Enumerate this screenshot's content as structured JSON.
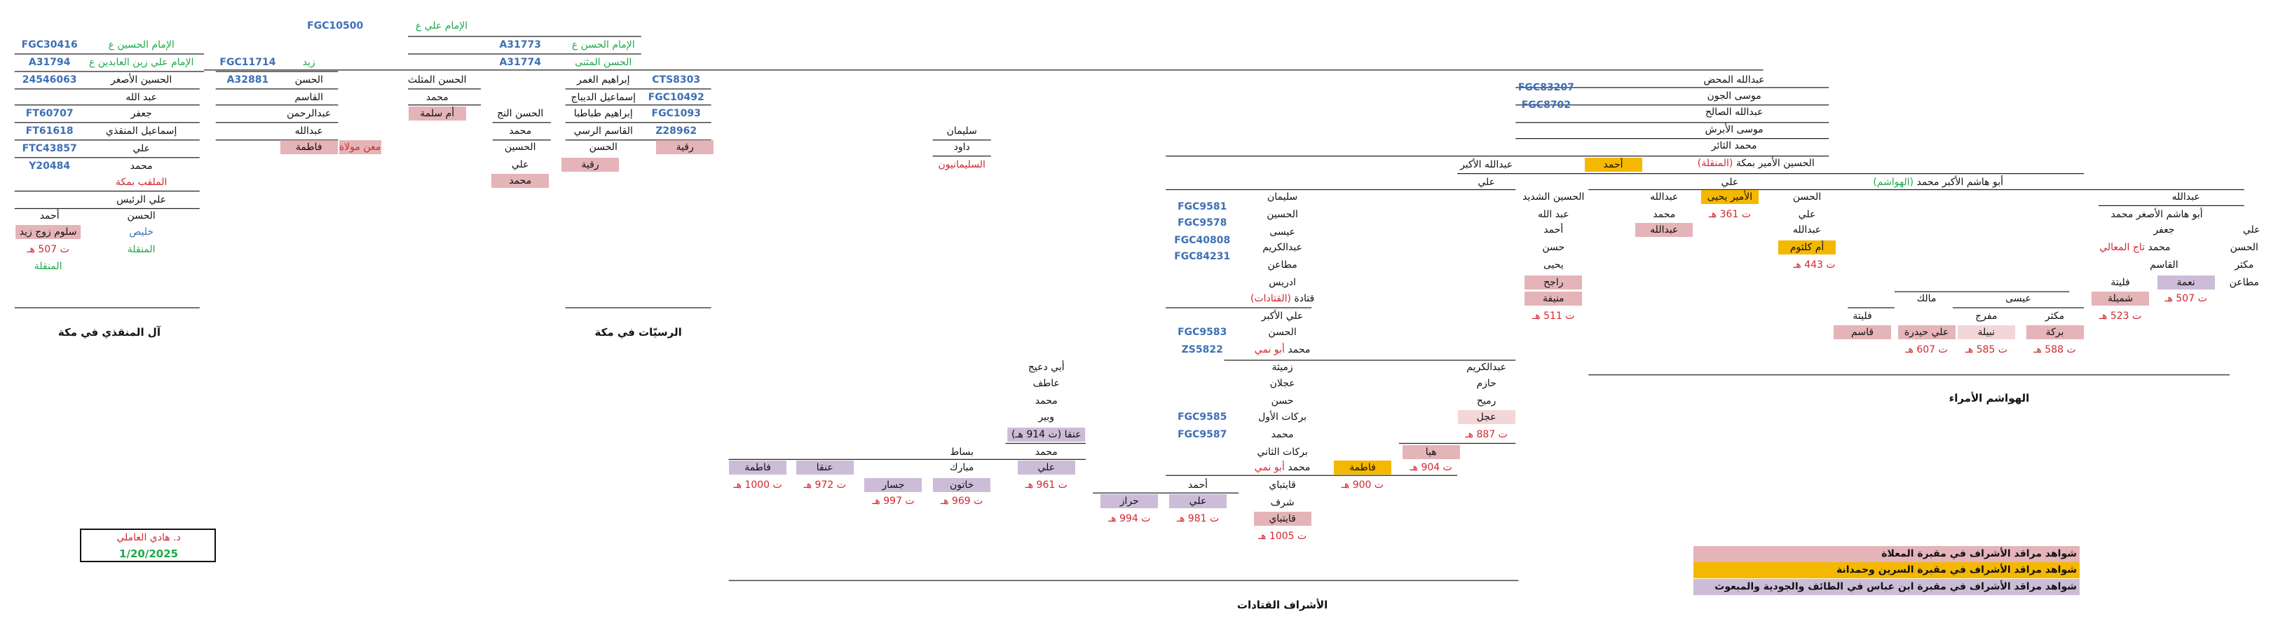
{
  "header": {
    "items": [
      "FGC10500",
      "الإمام علي ع"
    ]
  },
  "munqidhi": {
    "title": "آل المنقذي في مكة",
    "items": [
      "FGC30416",
      "الإمام الحسين ع",
      "A31794",
      "الإمام علي زين العابدين ع",
      "24546063",
      "الحسين الأصغر",
      "عبد الله",
      "FT60707",
      "جعفر",
      "FT61618",
      "إسماعيل المنقذي",
      "FTC43857",
      "علي",
      "Y20484",
      "محمد",
      "الملقب بمكة",
      "علي الرئيس",
      "أحمد",
      "الحسن",
      "سلوم زوج زيد",
      "خليص",
      "ت 507 هـ",
      "المنقلة",
      "المنقلة",
      "FGC11714",
      "زيد",
      "A32881",
      "الحسن",
      "القاسم",
      "عبدالرحمن",
      "عبدالله",
      "فاطمة",
      "معن مولاة",
      "الحسن المثلث",
      "محمد",
      "أم سلمة"
    ]
  },
  "rassiyat": {
    "title": "الرسيّات في مكة",
    "items": [
      "A31773",
      "الإمام الحسن ع",
      "A31774",
      "الحسن المثنى",
      "إبراهيم الغمر",
      "CTS8303",
      "إسماعيل الديباج",
      "FGC10492",
      "إبراهيم طباطبا",
      "FGC1093",
      "القاسم الرسي",
      "Z28962",
      "الحسن",
      "رقية",
      "رقية",
      "الحسن النج",
      "محمد",
      "الحسين",
      "علي",
      "محمد"
    ]
  },
  "sulaymaniyun": {
    "items": [
      "سليمان",
      "داود",
      "السليمانيون"
    ]
  },
  "hawashim": {
    "title": "الهواشم الأمراء",
    "items": [
      "FGC83207",
      "FGC8702",
      "عبدالله المحض",
      "موسى الجون",
      "عبدالله الصالح",
      "موسى الأبرش",
      "محمد الثائر",
      "الحسين الأمير بمكة",
      "(المنقلة)",
      "عبدالله الأكبر",
      "أحمد",
      "علي",
      "علي",
      "أبو هاشم الأكبر محمد",
      "(الهواشم)",
      "الحسين الشديد",
      "عبد الله",
      "أحمد",
      "حسن",
      "يحيى",
      "راجح",
      "منيفة",
      "ت 511 هـ",
      "عبدالله",
      "محمد",
      "عبدالله",
      "الأمير يحيى",
      "ت 361 هـ",
      "الحسن",
      "علي",
      "عبدالله",
      "أم كلثوم",
      "ت 443 هـ",
      "عبدالله",
      "أبو هاشم الأصغر محمد",
      "علي",
      "الحسن",
      "مكثر",
      "مطاعن",
      "جعفر",
      "محمد",
      "تاج المعالي",
      "القاسم",
      "فليتة",
      "نعمة",
      "شميلة",
      "ت 507 هـ",
      "ت 523 هـ",
      "مالك",
      "عيسى",
      "فليتة",
      "مفرج",
      "مكثر",
      "قاسم",
      "علي حيدرة",
      "نبيلة",
      "بركة",
      "ت 607 هـ",
      "ت 585 هـ",
      "ت 588 هـ"
    ]
  },
  "qatadat": {
    "title": "الأشراف القتادات",
    "items": [
      "FGC9581",
      "FGC9578",
      "FGC40808",
      "FGC84231",
      "سليمان",
      "الحسين",
      "عيسى",
      "عبدالكريم",
      "مطاعن",
      "ادريس",
      "قتادة",
      "(القتادات)",
      "علي الأكبر",
      "FGC9583",
      "الحسن",
      "ZS5822",
      "محمد",
      "أبو نمي",
      "زميثة",
      "عجلان",
      "حسن",
      "بركات الأول",
      "FGC9585",
      "محمد",
      "FGC9587",
      "بركات الثاني",
      "محمد",
      "أبو نمي",
      "قايتباي",
      "شرف",
      "قايتباي",
      "ت 1005 هـ",
      "عبدالكريم",
      "حازم",
      "رميح",
      "عجل",
      "ت 887 هـ",
      "هيا",
      "ت 904 هـ",
      "فاطمة",
      "ت 900 هـ",
      "أحمد",
      "علي",
      "ت 981 هـ",
      "حراز",
      "ت 994 هـ",
      "أبي دعيج",
      "عاطف",
      "محمد",
      "وبير",
      "عنقا (ت 914 هـ)",
      "محمد",
      "علي",
      "ت 961 هـ",
      "بساط",
      "مبارك",
      "خاتون",
      "ت 969 هـ",
      "جسار",
      "ت 997 هـ",
      "عنقا",
      "ت 972 هـ",
      "فاطمة",
      "ت 1000 هـ"
    ]
  },
  "signature": {
    "name": "د. هادي العاملي",
    "date": "1/20/2025"
  },
  "legend": {
    "items": [
      "شواهد مراقد الأشراف في مقبرة المعلاة",
      "شواهد مراقد الأشراف في مقبرة السرين وحمدانة",
      "شواهد مراقد الأشراف في مقبرة ابن عباس في الطائف والجودية والمبعوث"
    ]
  }
}
